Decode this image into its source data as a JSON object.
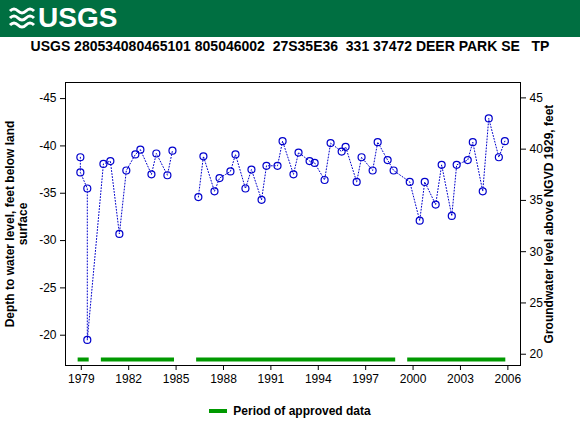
{
  "chart_data": {
    "type": "line",
    "logo": "USGS",
    "title": "USGS 280534080465101 805046002  27S35E36  331 37472 DEER PARK SE   TP",
    "y_label": "Depth to water level, feet below land\nsurface",
    "y2_label": "Groundwater level above NGVD 1929, feet",
    "color": "#0000cc",
    "marker": "circle",
    "line_style": "dotted",
    "grid": false,
    "x": [
      1978.94,
      1978.94,
      1979.38,
      1979.38,
      1980.4,
      1980.84,
      1981.41,
      1981.85,
      1982.42,
      1982.74,
      1983.44,
      1983.75,
      1984.45,
      1984.77,
      1985.6,
      1986.41,
      1986.73,
      1987.43,
      1987.75,
      1988.44,
      1988.76,
      1989.39,
      1989.77,
      1990.41,
      1990.72,
      1991.42,
      1991.74,
      1992.43,
      1992.75,
      1993.45,
      1993.77,
      1994.4,
      1994.78,
      1995.48,
      1995.73,
      1996.43,
      1996.74,
      1997.44,
      1997.76,
      1998.39,
      1998.77,
      1999.79,
      2000.42,
      2000.74,
      2001.43,
      2001.81,
      2002.45,
      2002.76,
      2003.46,
      2003.78,
      2004.41,
      2004.79,
      2005.43,
      2005.81
    ],
    "values": [
      -38.8,
      -37.2,
      -35.5,
      -19.5,
      -38.1,
      -38.4,
      -30.7,
      -37.4,
      -39.1,
      -39.6,
      -37.0,
      -39.2,
      -36.9,
      -39.5,
      null,
      -34.6,
      -38.9,
      -35.2,
      -36.6,
      -37.3,
      -39.1,
      -35.5,
      -37.5,
      -34.3,
      -37.9,
      -37.9,
      -40.5,
      -37.0,
      -39.3,
      -38.4,
      -38.2,
      -36.4,
      -40.3,
      -39.4,
      -39.9,
      -36.2,
      -38.8,
      -37.4,
      -40.4,
      -38.5,
      -37.4,
      -36.2,
      -32.1,
      -36.2,
      -33.8,
      -38.0,
      -32.6,
      -38.0,
      -38.5,
      -40.4,
      -35.2,
      -42.9,
      -38.8,
      -40.5
    ],
    "xlim": [
      1978.0,
      2006.8
    ],
    "xticks": [
      1979,
      1982,
      1985,
      1988,
      1991,
      1994,
      1997,
      2000,
      2003,
      2006
    ],
    "ylim": [
      -16.8,
      -46.7
    ],
    "yticks": [
      -45,
      -40,
      -35,
      -30,
      -25,
      -20
    ],
    "y2lim": [
      18.9,
      46.5
    ],
    "y2ticks": [
      20,
      25,
      30,
      35,
      40,
      45
    ],
    "approved_periods": {
      "name": "Period of approved data",
      "color": "#009900",
      "ranges": [
        [
          1978.8,
          1979.5
        ],
        [
          1980.27,
          1984.9
        ],
        [
          1986.3,
          1998.9
        ],
        [
          1999.66,
          2005.87
        ]
      ]
    }
  }
}
